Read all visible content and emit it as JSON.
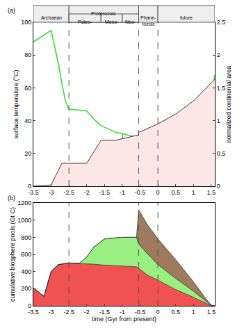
{
  "chart_data": [
    {
      "type": "line",
      "title": "(a)",
      "y_label": "surface temperature (°C)",
      "y2_label": "normalized continental area",
      "xlim": [
        -3.5,
        1.6
      ],
      "xticks": [
        -3.5,
        -3,
        -2.5,
        -2,
        -1.5,
        -1,
        -0.5,
        0,
        0.5,
        1,
        1.5
      ],
      "ylim": [
        0,
        100
      ],
      "yticks": [
        0,
        20,
        40,
        60,
        80,
        100
      ],
      "y2lim": [
        0,
        2.5
      ],
      "y2ticks": [
        0,
        0.5,
        1,
        1.5,
        2,
        2.5
      ],
      "vlines": [
        -2.5,
        -0.54,
        0
      ],
      "eons": [
        {
          "label": "Archaean",
          "start": -3.5,
          "end": -2.5
        },
        {
          "label": "Proterozoic",
          "start": -2.5,
          "end": -0.54
        },
        {
          "label": "Phane-\nrozoic",
          "start": -0.54,
          "end": 0
        },
        {
          "label": "future",
          "start": 0,
          "end": 1.6
        }
      ],
      "eras": [
        {
          "label": "Paleo-",
          "start": -2.5,
          "end": -1.6
        },
        {
          "label": "Meso-",
          "start": -1.6,
          "end": -1.0
        },
        {
          "label": "Neo-",
          "start": -1.0,
          "end": -0.54
        }
      ],
      "series": [
        {
          "type": "area",
          "axis": "y2",
          "color": "#fbe7e7",
          "x": [
            -3.5,
            -3.0,
            -2.7,
            -2.0,
            -1.6,
            -1.2,
            -0.8,
            -0.56,
            -0.54,
            0,
            0.5,
            1.0,
            1.6
          ],
          "values": [
            0,
            0.02,
            0.35,
            0.35,
            0.7,
            0.7,
            0.75,
            0.78,
            0.82,
            0.95,
            1.1,
            1.3,
            1.63
          ]
        },
        {
          "type": "line",
          "color": "#33dd33",
          "line_style": "solid",
          "x": [
            -3.5,
            -3.2,
            -3.0,
            -2.9,
            -2.8,
            -2.7,
            -2.6,
            -2.5,
            -2.0,
            -1.8,
            -1.6,
            -1.4,
            -1.2,
            -1.0,
            -0.8,
            -0.6,
            -0.55,
            -0.5,
            -0.3,
            -0.1,
            0,
            0.25,
            0.5,
            0.75,
            1.0,
            1.2,
            1.4,
            1.5,
            1.6
          ],
          "values": [
            88,
            92,
            95,
            85,
            75,
            63,
            52,
            47,
            46,
            41,
            37,
            35,
            33,
            32,
            31,
            30,
            22,
            17,
            14,
            12,
            13,
            15,
            18,
            22,
            27,
            33,
            45,
            55,
            68
          ]
        },
        {
          "type": "line",
          "color": "#33dd33",
          "line_style": "dashed",
          "x": [
            -1.0,
            -0.97,
            -0.55,
            -0.54
          ],
          "values": [
            32,
            25,
            25,
            22
          ]
        }
      ]
    },
    {
      "type": "area",
      "title": "(b)",
      "stacked": true,
      "x_label": "time (Gyr from present)",
      "y_label": "cumulative biosphere pools (Gt C)",
      "xlim": [
        -3.5,
        1.6
      ],
      "xticks": [
        -3.5,
        -3,
        -2.5,
        -2,
        -1.5,
        -1,
        -0.5,
        0,
        0.5,
        1,
        1.5
      ],
      "ylim": [
        0,
        1200
      ],
      "yticks": [
        0,
        200,
        400,
        600,
        800,
        1000,
        1200
      ],
      "vlines": [
        -2.5,
        -0.54,
        0
      ],
      "x": [
        -3.5,
        -3.2,
        -3.0,
        -2.8,
        -2.5,
        -2.2,
        -2.0,
        -1.8,
        -1.5,
        -1.0,
        -0.6,
        -0.54,
        -0.3,
        0,
        0.5,
        1.0,
        1.3,
        1.5,
        1.6
      ],
      "series": [
        {
          "color": "#f05252",
          "values": [
            210,
            110,
            400,
            480,
            500,
            495,
            490,
            485,
            475,
            465,
            455,
            440,
            360,
            300,
            190,
            100,
            40,
            0,
            0
          ]
        },
        {
          "color": "#99ef80",
          "values": [
            0,
            0,
            0,
            0,
            0,
            0,
            80,
            200,
            305,
            335,
            345,
            280,
            250,
            180,
            130,
            70,
            30,
            5,
            0
          ]
        },
        {
          "color": "#a07a5c",
          "values": [
            0,
            0,
            0,
            0,
            0,
            0,
            0,
            0,
            0,
            0,
            0,
            400,
            340,
            300,
            220,
            110,
            40,
            0,
            0
          ]
        }
      ]
    }
  ]
}
